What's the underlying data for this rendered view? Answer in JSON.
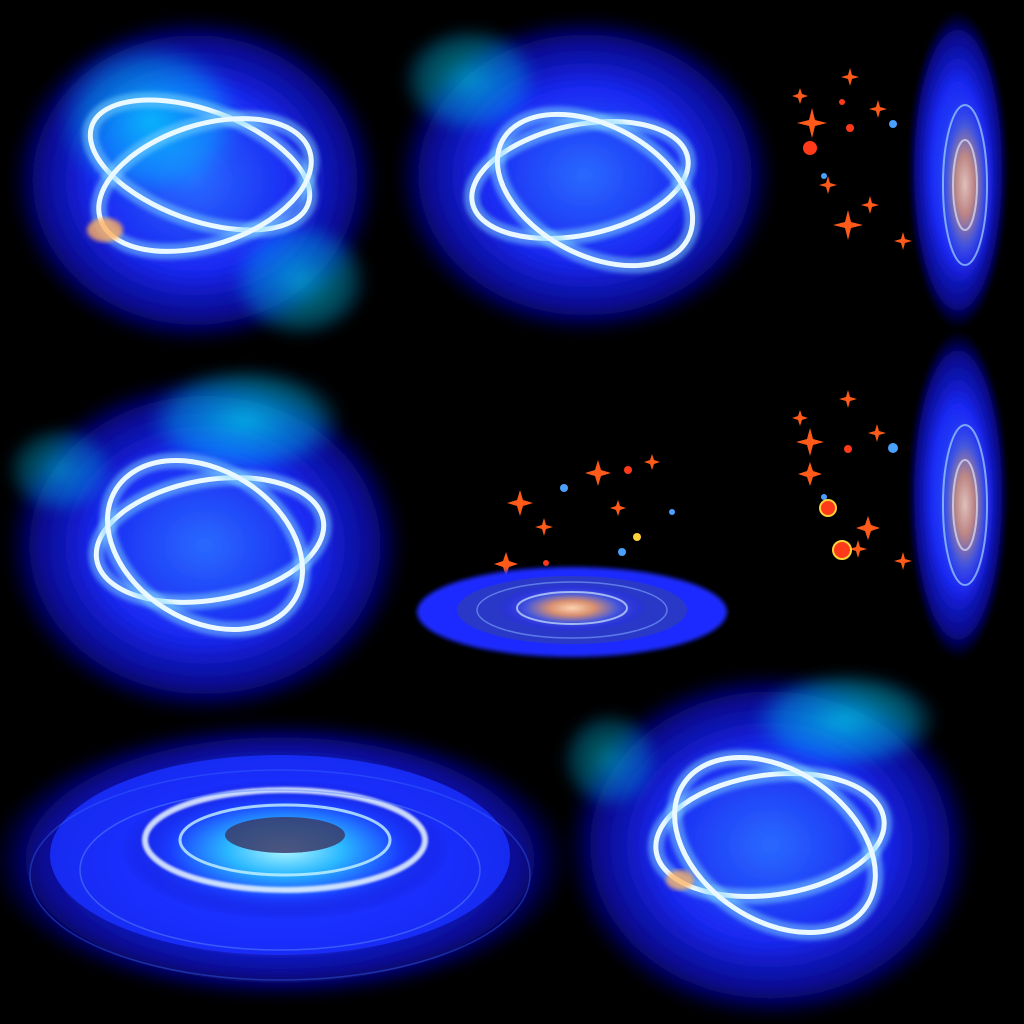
{
  "sheet": {
    "kind": "sprite-sheet",
    "background": "#000000",
    "palette": {
      "glow_deep": "#1a1aff",
      "glow_cyan": "#00f0ff",
      "ring_white": "#eaf8ff",
      "ring_edge": "#7fd6ff",
      "spark_orange": "#ff5a1a",
      "spark_yellow": "#ffd23a",
      "spark_blue": "#4aa0ff",
      "portal_core": "#e8a27a"
    },
    "sprites": [
      {
        "name": "magic-ring-frame-1",
        "type": "crossed-rings"
      },
      {
        "name": "magic-ring-frame-2",
        "type": "crossed-rings"
      },
      {
        "name": "spark-burst-1",
        "type": "sparks"
      },
      {
        "name": "portal-side-1",
        "type": "portal-edge"
      },
      {
        "name": "magic-ring-frame-3",
        "type": "crossed-rings"
      },
      {
        "name": "spark-burst-2",
        "type": "sparks"
      },
      {
        "name": "ground-portal-small",
        "type": "ground-portal"
      },
      {
        "name": "spark-burst-3",
        "type": "sparks"
      },
      {
        "name": "portal-side-2",
        "type": "portal-edge"
      },
      {
        "name": "ground-portal-large",
        "type": "ground-portal"
      },
      {
        "name": "magic-ring-frame-4",
        "type": "crossed-rings"
      }
    ]
  }
}
